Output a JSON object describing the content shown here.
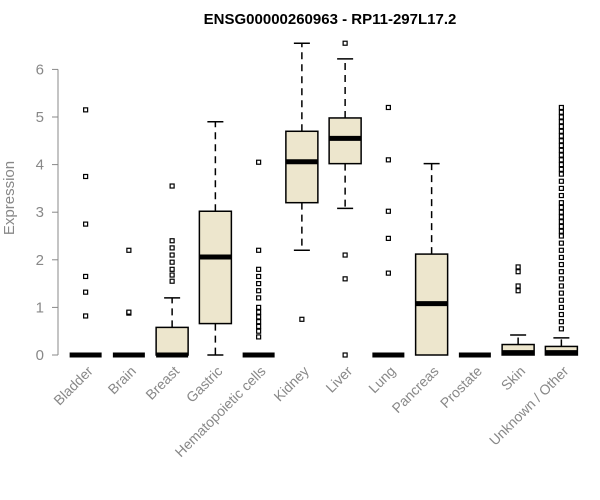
{
  "chart_data": {
    "type": "boxplot",
    "title": "ENSG00000260963 - RP11-297L17.2",
    "xlabel": "",
    "ylabel": "Expression",
    "ylim": [
      0,
      6.6
    ],
    "yticks": [
      0,
      1,
      2,
      3,
      4,
      5,
      6
    ],
    "colors": {
      "box_fill": "#ede6cd",
      "box_stroke": "#000000",
      "axis": "#888888"
    },
    "categories": [
      "Bladder",
      "Brain",
      "Breast",
      "Gastric",
      "Hematopoietic cells",
      "Kidney",
      "Liver",
      "Lung",
      "Pancreas",
      "Prostate",
      "Skin",
      "Unknown / Other"
    ],
    "boxes": [
      {
        "name": "Bladder",
        "min": 0,
        "q1": 0,
        "median": 0,
        "q3": 0,
        "max": 0,
        "outliers": [
          0.82,
          1.32,
          1.65,
          2.75,
          3.75,
          5.15
        ]
      },
      {
        "name": "Brain",
        "min": 0,
        "q1": 0,
        "median": 0,
        "q3": 0,
        "max": 0,
        "outliers": [
          0.88,
          0.9,
          2.2
        ]
      },
      {
        "name": "Breast",
        "min": 0,
        "q1": 0,
        "median": 0,
        "q3": 0.58,
        "max": 1.2,
        "outliers": [
          1.55,
          1.68,
          1.8,
          1.95,
          2.1,
          2.25,
          2.4,
          3.55
        ]
      },
      {
        "name": "Gastric",
        "min": 0,
        "q1": 0.66,
        "median": 2.06,
        "q3": 3.02,
        "max": 4.9,
        "outliers": []
      },
      {
        "name": "Hematopoietic cells",
        "min": 0,
        "q1": 0,
        "median": 0,
        "q3": 0,
        "max": 0,
        "outliers": [
          0.38,
          0.5,
          0.6,
          0.7,
          0.8,
          0.9,
          1.0,
          1.2,
          1.35,
          1.5,
          1.65,
          1.8,
          2.2,
          4.05
        ]
      },
      {
        "name": "Kidney",
        "min": 2.2,
        "q1": 3.2,
        "median": 4.06,
        "q3": 4.7,
        "max": 6.55,
        "outliers": [
          0.75
        ]
      },
      {
        "name": "Liver",
        "min": 3.08,
        "q1": 4.02,
        "median": 4.55,
        "q3": 4.98,
        "max": 6.22,
        "outliers": [
          0,
          1.6,
          2.1,
          6.55
        ]
      },
      {
        "name": "Lung",
        "min": 0,
        "q1": 0,
        "median": 0,
        "q3": 0,
        "max": 0,
        "outliers": [
          1.72,
          2.45,
          3.02,
          4.1,
          5.2
        ]
      },
      {
        "name": "Pancreas",
        "min": 0,
        "q1": 0,
        "median": 1.08,
        "q3": 2.12,
        "max": 4.02,
        "outliers": []
      },
      {
        "name": "Prostate",
        "min": 0,
        "q1": 0,
        "median": 0,
        "q3": 0,
        "max": 0,
        "outliers": []
      },
      {
        "name": "Skin",
        "min": 0,
        "q1": 0,
        "median": 0.05,
        "q3": 0.22,
        "max": 0.42,
        "outliers": [
          1.35,
          1.45,
          1.75,
          1.85
        ]
      },
      {
        "name": "Unknown / Other",
        "min": 0,
        "q1": 0,
        "median": 0.05,
        "q3": 0.18,
        "max": 0.36,
        "outliers": [
          0.55,
          0.7,
          0.85,
          1.0,
          1.15,
          1.3,
          1.45,
          1.6,
          1.75,
          1.9,
          2.05,
          2.2,
          2.35,
          2.5,
          2.6,
          2.7,
          2.8,
          2.9,
          3.0,
          3.1,
          3.2,
          3.35,
          3.5,
          3.65,
          3.8,
          3.9,
          4.0,
          4.1,
          4.2,
          4.3,
          4.4,
          4.5,
          4.6,
          4.7,
          4.8,
          4.9,
          5.0,
          5.1,
          5.2
        ]
      }
    ]
  }
}
